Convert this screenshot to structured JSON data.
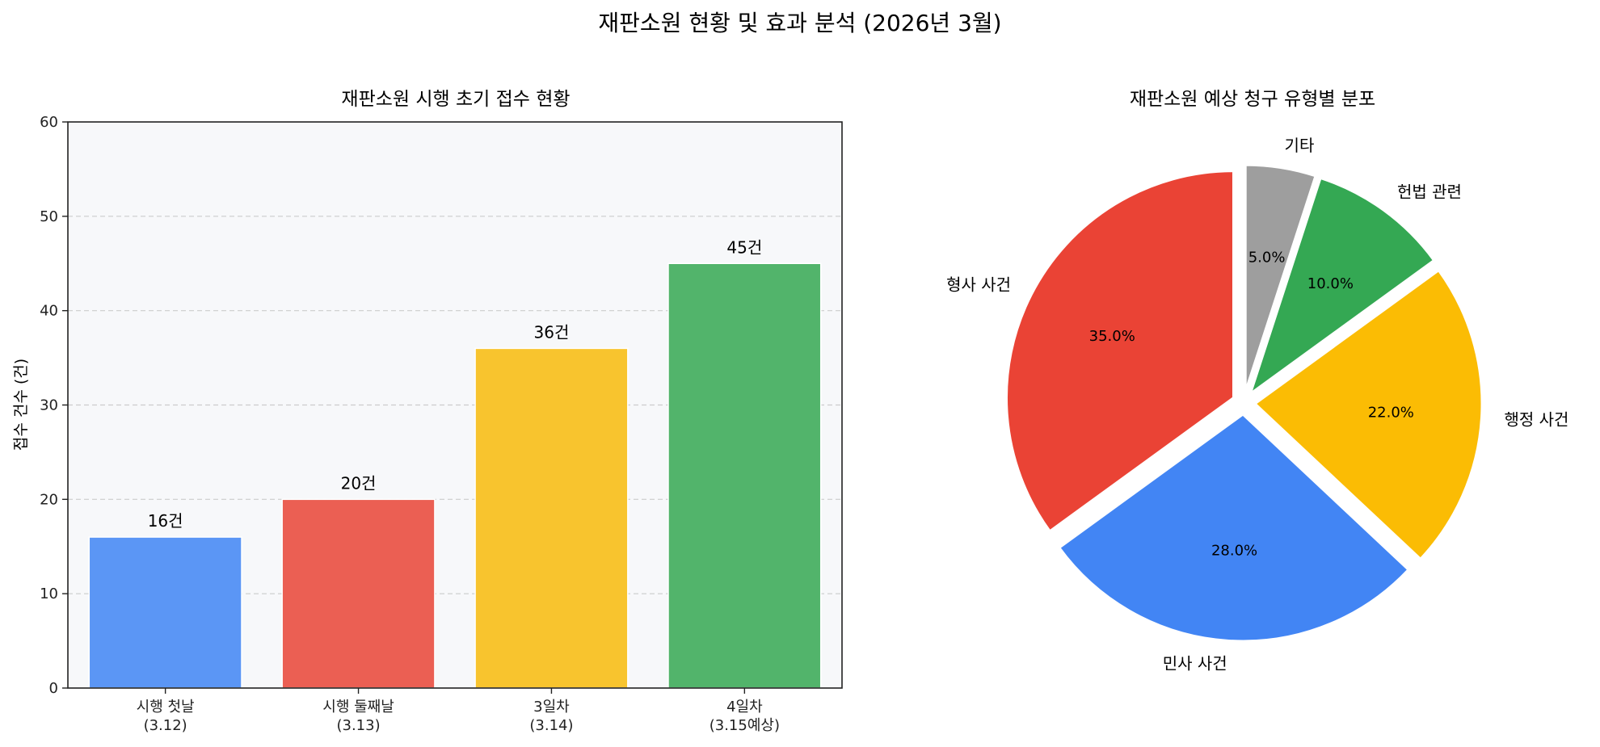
{
  "figure": {
    "title": "재판소원 현황 및 효과 분석 (2026년 3월)"
  },
  "chart_data": [
    {
      "type": "bar",
      "title": "재판소원 시행 초기 접수 현황",
      "ylabel": "접수 건수 (건)",
      "xlabel": "",
      "ylim": [
        0,
        60
      ],
      "yticks": [
        "0",
        "10",
        "20",
        "30",
        "40",
        "50",
        "60"
      ],
      "categories": [
        [
          "시행 첫날",
          "(3.12)"
        ],
        [
          "시행 둘째날",
          "(3.13)"
        ],
        [
          "3일차",
          "(3.14)"
        ],
        [
          "4일차",
          "(3.15예상)"
        ]
      ],
      "values": [
        16,
        20,
        36,
        45
      ],
      "value_labels": [
        "16건",
        "20건",
        "36건",
        "45건"
      ],
      "colors": [
        "#5b96f5",
        "#eb5f53",
        "#f8c42e",
        "#52b46b"
      ],
      "grid": "y-dashed",
      "background": "#f7f8fa"
    },
    {
      "type": "pie",
      "title": "재판소원 예상 청구 유형별 분포",
      "labels": [
        "형사 사건",
        "민사 사건",
        "행정 사건",
        "헌법 관련",
        "기타"
      ],
      "values": [
        35.0,
        28.0,
        22.0,
        10.0,
        5.0
      ],
      "pct_labels": [
        "35.0%",
        "28.0%",
        "22.0%",
        "10.0%",
        "5.0%"
      ],
      "colors": [
        "#ea4335",
        "#4285f4",
        "#fbbc04",
        "#34a853",
        "#9e9e9e"
      ],
      "start_angle": 90,
      "direction": "counterclockwise",
      "exploded": true
    }
  ]
}
